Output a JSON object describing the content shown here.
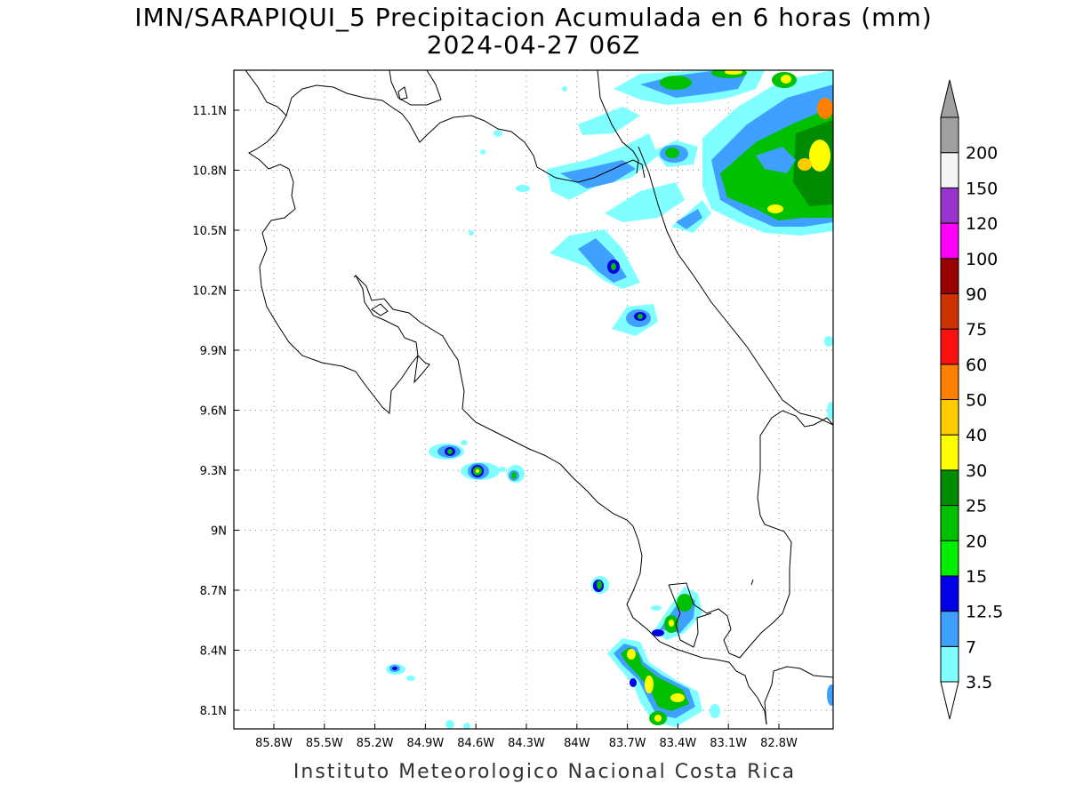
{
  "title": {
    "line1": "IMN/SARAPIQUI_5 Precipitacion Acumulada en 6 horas (mm)",
    "line2": "2024-04-27 06Z"
  },
  "footer": "Instituto Meteorologico Nacional Costa Rica",
  "map": {
    "lon_labels": [
      "85.8W",
      "85.5W",
      "85.2W",
      "84.9W",
      "84.6W",
      "84.3W",
      "84W",
      "83.7W",
      "83.4W",
      "83.1W",
      "82.8W"
    ],
    "lat_labels": [
      "11.1N",
      "10.8N",
      "10.5N",
      "10.2N",
      "9.9N",
      "9.6N",
      "9.3N",
      "9N",
      "8.7N",
      "8.4N",
      "8.1N"
    ],
    "gridlines": "dotted",
    "region": "Costa Rica",
    "field": "6-hour accumulated precipitation (mm)"
  },
  "colorbar": {
    "labels": [
      "3.5",
      "7",
      "12.5",
      "15",
      "20",
      "25",
      "30",
      "40",
      "50",
      "60",
      "75",
      "90",
      "100",
      "120",
      "150",
      "200"
    ],
    "colors": [
      "#7fffff",
      "#40a0ff",
      "#0000e6",
      "#00ee00",
      "#00c000",
      "#008c00",
      "#ffff00",
      "#ffcc00",
      "#ff7f00",
      "#ff1010",
      "#cc3300",
      "#990000",
      "#ff00ff",
      "#9933cc",
      "#f5f5f5",
      "#a0a0a0"
    ],
    "lowest_color": "#ffffff",
    "over_arrow_color": "#a0a0a0"
  },
  "colors": {
    "c35": "#7fffff",
    "c7": "#40a0ff",
    "c125": "#0000e6",
    "c15": "#00ee00",
    "c20": "#00c000",
    "c25": "#008c00",
    "c30": "#ffff00",
    "c40": "#ffcc00",
    "c50": "#ff7f00"
  }
}
